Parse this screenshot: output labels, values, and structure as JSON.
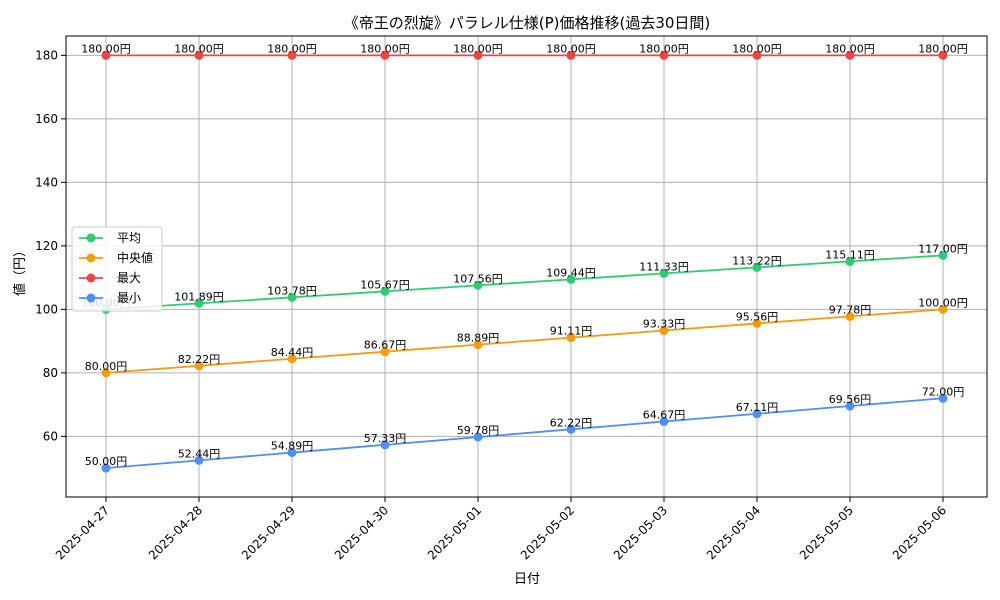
{
  "chart_data": {
    "type": "line",
    "title": "《帝王の烈旋》パラレル仕様(P)価格推移(過去30日間)",
    "xlabel": "日付",
    "ylabel": "値（円）",
    "categories": [
      "2025-04-27",
      "2025-04-28",
      "2025-04-29",
      "2025-04-30",
      "2025-05-01",
      "2025-05-02",
      "2025-05-03",
      "2025-05-04",
      "2025-05-05",
      "2025-05-06"
    ],
    "yticks": [
      60,
      80,
      100,
      120,
      140,
      160,
      180
    ],
    "ylim": [
      40.9,
      186.1
    ],
    "grid": true,
    "legend": "center-left",
    "value_suffix": "円",
    "series": [
      {
        "name": "平均",
        "color": "#2ecc71",
        "values": [
          100.0,
          101.89,
          103.78,
          105.67,
          107.56,
          109.44,
          111.33,
          113.22,
          115.11,
          117.0
        ]
      },
      {
        "name": "中央値",
        "color": "#f39c12",
        "values": [
          80.0,
          82.22,
          84.44,
          86.67,
          88.89,
          91.11,
          93.33,
          95.56,
          97.78,
          100.0
        ]
      },
      {
        "name": "最大",
        "color": "#ef4444",
        "values": [
          180.0,
          180.0,
          180.0,
          180.0,
          180.0,
          180.0,
          180.0,
          180.0,
          180.0,
          180.0
        ]
      },
      {
        "name": "最小",
        "color": "#4f8ff0",
        "values": [
          50.0,
          52.44,
          54.89,
          57.33,
          59.78,
          62.22,
          64.67,
          67.11,
          69.56,
          72.0
        ]
      }
    ]
  }
}
